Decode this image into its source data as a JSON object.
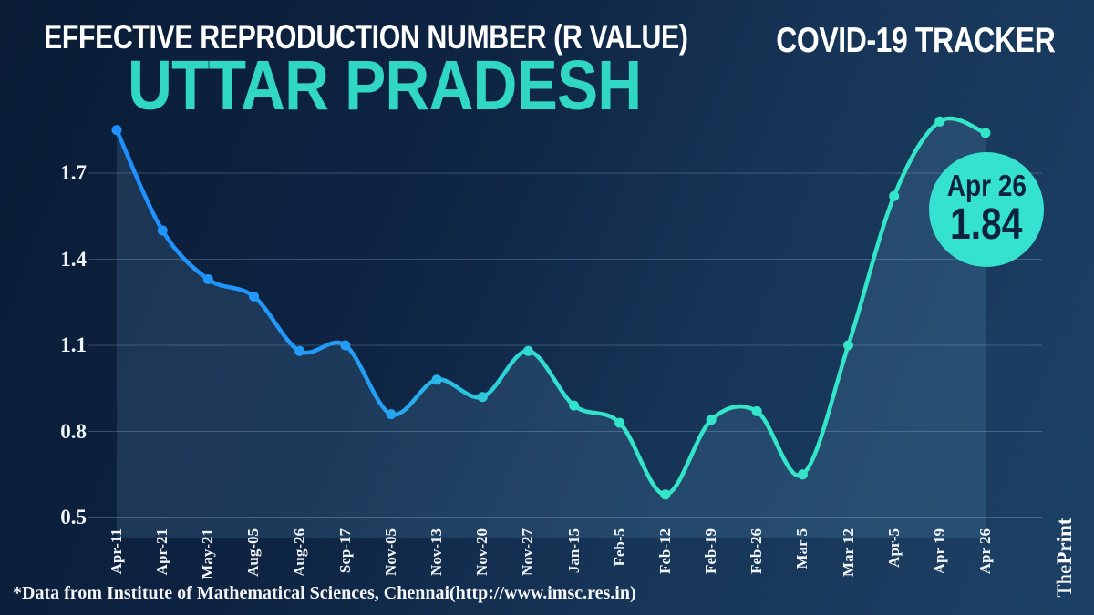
{
  "header": {
    "title": "EFFECTIVE REPRODUCTION NUMBER (R VALUE)",
    "state": "UTTAR PRADESH",
    "tracker_label": "COVID-19 TRACKER"
  },
  "callout": {
    "date": "Apr 26",
    "value": "1.84"
  },
  "footer": {
    "source": "*Data from Institute of Mathematical Sciences, Chennai(http://www.imsc.res.in)"
  },
  "brand": {
    "the": "The",
    "print": "Print"
  },
  "colors": {
    "accent_teal": "#35e2cf",
    "state_title_teal": "#30d8c4",
    "line_start_blue": "#1e90ff",
    "line_end_teal": "#33e6c9",
    "callout_text_navy": "#0c2340",
    "background_dark": "#0a1c36",
    "background_light": "#1d4166",
    "area_fill": "rgba(118,187,231,0.15)",
    "gridline": "rgba(170,196,222,0.28)",
    "axis_line": "rgba(190,215,235,0.55)"
  },
  "chart_data": {
    "type": "line",
    "title": "EFFECTIVE REPRODUCTION NUMBER (R VALUE) — UTTAR PRADESH",
    "x": [
      "Apr-11",
      "Apr-21",
      "May-21",
      "Aug-05",
      "Aug-26",
      "Sep-17",
      "Nov-05",
      "Nov-13",
      "Nov-20",
      "Nov-27",
      "Jan-15",
      "Feb-5",
      "Feb-12",
      "Feb-19",
      "Feb-26",
      "Mar 5",
      "Mar 12",
      "Apr-5",
      "Apr 19",
      "Apr 26"
    ],
    "values": [
      1.85,
      1.5,
      1.33,
      1.27,
      1.08,
      1.1,
      0.86,
      0.98,
      0.92,
      1.08,
      0.89,
      0.83,
      0.58,
      0.84,
      0.87,
      0.65,
      1.1,
      1.62,
      1.88,
      1.84
    ],
    "yticks": [
      1.7,
      1.4,
      1.1,
      0.8,
      0.5
    ],
    "ylim": [
      0.5,
      1.95
    ],
    "grid": true,
    "marker": "circle",
    "smooth": true,
    "area_fill": true,
    "legend": "none",
    "annotation": {
      "label": "Apr 26",
      "value": 1.84
    }
  }
}
